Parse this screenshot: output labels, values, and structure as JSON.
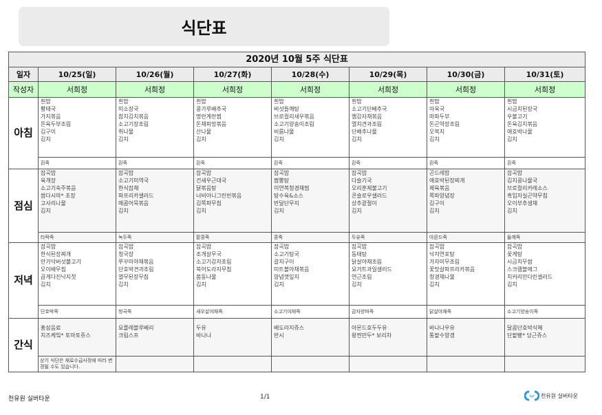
{
  "page_title": "식단표",
  "table_title": "2020년 10월 5주 식단표",
  "row_labels": {
    "date": "일자",
    "author": "작성자",
    "breakfast": "아침",
    "lunch": "점심",
    "dinner": "저녁",
    "snack": "간식"
  },
  "days": [
    {
      "date": "10/25(일)",
      "author": "서희정",
      "breakfast": [
        "흰밥",
        "황태국",
        "가지볶음",
        "돈육두부조림",
        "김구이",
        "김치"
      ],
      "breakfast_porridge": "흰죽",
      "lunch": [
        "잡곡밥",
        "육개장",
        "소고기숙주볶음",
        "쌈다시마* 초장",
        "고사리나물",
        "김치"
      ],
      "lunch_porridge": "타락죽",
      "dinner": [
        "잡곡밥",
        "한식된장찌개",
        "만가닥버섯불고기",
        "오이배무침",
        "곱게다진낙지젓",
        "김치"
      ],
      "dinner_porridge": "단호박죽",
      "snack": [
        "홍삼음료",
        "치즈케잌* 토마토쥬스"
      ],
      "note": "상기 식단은 재료수급사정에 따라 변경될 수도 있습니다."
    },
    {
      "date": "10/26(월)",
      "author": "서희정",
      "breakfast": [
        "흰밥",
        "미소장국",
        "참치김치볶음",
        "소고기장조림",
        "취나물",
        "김치"
      ],
      "breakfast_porridge": "흰죽",
      "lunch": [
        "잡곡밥",
        "소고기미역국",
        "한식잡채",
        "파프리카샐러드",
        "매콤어묵볶음",
        "김치"
      ],
      "lunch_porridge": "녹두죽",
      "dinner": [
        "잡곡밥",
        "청국장",
        "쭈꾸미야채볶음",
        "단호박견과조림",
        "열무된장무침",
        "김치"
      ],
      "dinner_porridge": "청국죽",
      "snack": [
        "요플레블루베리",
        "크림스프"
      ],
      "note": ""
    },
    {
      "date": "10/27(화)",
      "author": "서희정",
      "breakfast": [
        "흰밥",
        "콩가루배추국",
        "명란계란찜",
        "돈채피망볶음",
        "산나물",
        "김치"
      ],
      "breakfast_porridge": "흰죽",
      "lunch": [
        "잡곡밥",
        "건새우근대국",
        "닭볶음탕",
        "너비아니그린빈볶음",
        "김쪽파무침",
        "김치"
      ],
      "lunch_porridge": "팥콩죽",
      "dinner": [
        "잡곡밥",
        "조개살무국",
        "소고기감자조림",
        "북어도라지무침",
        "봄동나물",
        "김치"
      ],
      "dinner_porridge": "새우살야채죽",
      "snack": [
        "두유",
        "바나나"
      ],
      "note": ""
    },
    {
      "date": "10/28(수)",
      "author": "서희정",
      "breakfast": [
        "흰밥",
        "버섯들깨탕",
        "브로컬리새우볶음",
        "소고기양송이조림",
        "비름나물",
        "김치"
      ],
      "breakfast_porridge": "흰죽",
      "lunch": [
        "잡곡밥",
        "짬뽕탕",
        "이연복청경채찜",
        "탕수육&소스",
        "반달단무지",
        "김치"
      ],
      "lunch_porridge": "콩죽",
      "dinner": [
        "잡곡밥",
        "소고기탕국",
        "갈치구이",
        "미트볼야채볶음",
        "양념깻잎지",
        "김치"
      ],
      "dinner_porridge": "소고기야채죽",
      "snack": [
        "배도라지쥬스",
        "반시"
      ],
      "note": ""
    },
    {
      "date": "10/29(목)",
      "author": "서희정",
      "breakfast": [
        "흰밥",
        "소고기단배추국",
        "햄감자채볶음",
        "멸치견과조림",
        "단배추나물",
        "김치"
      ],
      "breakfast_porridge": "흰죽",
      "lunch": [
        "잡곡밥",
        "다슬기국",
        "오리훈제불고기",
        "콘슬로우샐러드",
        "상추겉절이",
        "김치"
      ],
      "lunch_porridge": "두유죽",
      "dinner": [
        "잡곡밥",
        "동태탕",
        "닭살야채조림",
        "요거트과일샐러드",
        "연근조림",
        "김치"
      ],
      "dinner_porridge": "감자양파죽",
      "snack": [
        "아몬드호두두유",
        "왕찐만두* 보리차"
      ],
      "note": ""
    },
    {
      "date": "10/30(금)",
      "author": "서희정",
      "breakfast": [
        "흰밥",
        "아욱국",
        "마파두부",
        "돈곤약장조림",
        "오복지",
        "김치"
      ],
      "breakfast_porridge": "흰죽",
      "lunch": [
        "곤드레밥",
        "애호박된장찌개",
        "제육볶음",
        "쪽파양념장",
        "김구이",
        "김치"
      ],
      "lunch_porridge": "아몬드죽",
      "dinner": [
        "잡곡밥",
        "낙지연포탕",
        "가자미무조림",
        "꽃맛살파프리카볶음",
        "청경채나물",
        "김치"
      ],
      "dinner_porridge": "닭살야채죽",
      "snack": [
        "바나나우유",
        "통팥수양갱"
      ],
      "note": ""
    },
    {
      "date": "10/31(토)",
      "author": "서희정",
      "breakfast": [
        "흰밥",
        "시금치된장국",
        "우불고기",
        "돈육김치볶음",
        "애호박나물",
        "김치"
      ],
      "breakfast_porridge": "흰죽",
      "lunch": [
        "잡곡밥",
        "김치콩나물국",
        "브로컬리카레소스",
        "흑임자실곤약무침",
        "오이부추생채",
        "김치"
      ],
      "lunch_porridge": "들깨죽",
      "dinner": [
        "잡곡밥",
        "꽃게탕",
        "시금치무쌈",
        "스크램블에그",
        "치커리만다린샐러드",
        "김치"
      ],
      "dinner_porridge": "소고기양송이죽",
      "snack": [
        "달콤단호박식혜",
        "단팥빵* 당근쥬스"
      ],
      "note": ""
    }
  ],
  "footer": {
    "left": "천유원 실버타운",
    "page": "1/1",
    "logo_text": "천유원 실버타운"
  },
  "colors": {
    "author_row": "#ccffcc",
    "header_row": "#ebebeb",
    "logo": "#2a9be0"
  }
}
